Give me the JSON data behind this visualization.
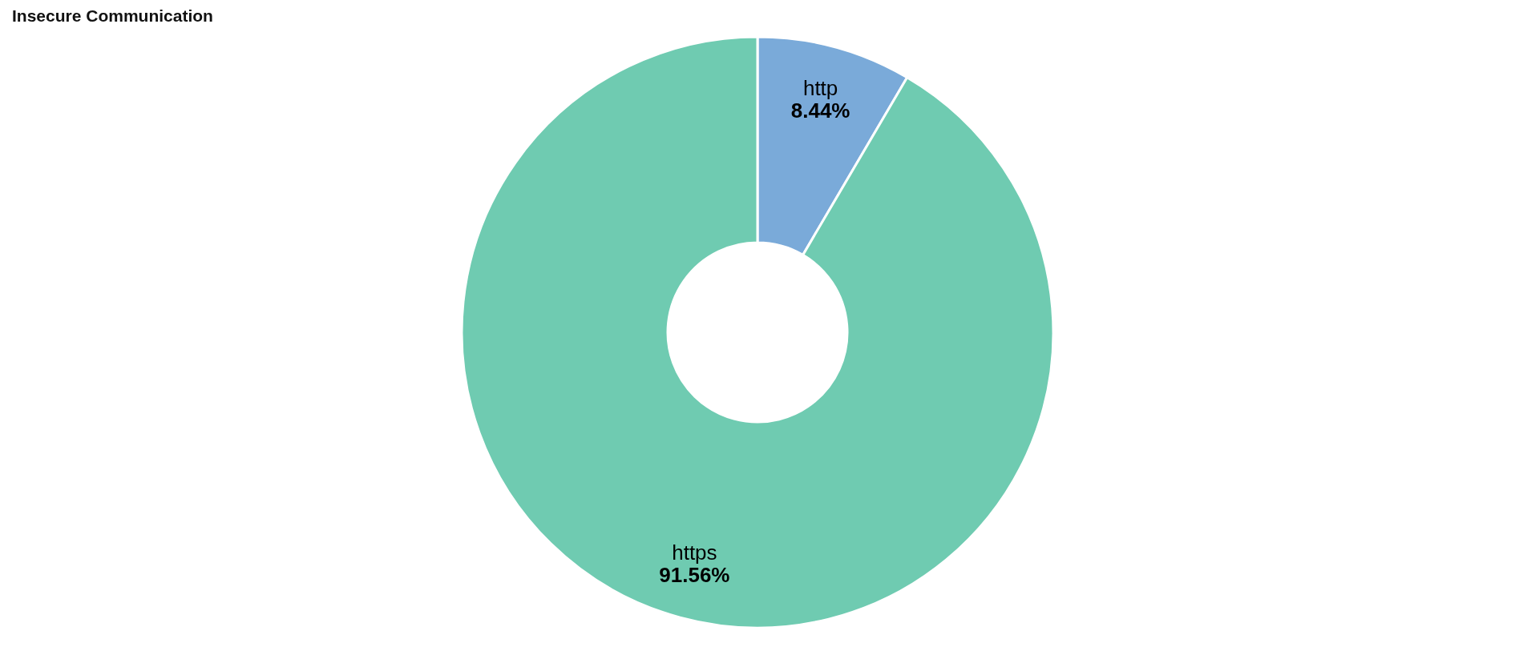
{
  "chart_data": {
    "type": "donut",
    "title": "Insecure Communication",
    "categories": [
      "http",
      "https"
    ],
    "values": [
      8.44,
      91.56
    ],
    "colors": [
      "#7aaad9",
      "#6fcbb1"
    ],
    "value_labels": [
      "8.44%",
      "91.56%"
    ],
    "legend": false
  }
}
